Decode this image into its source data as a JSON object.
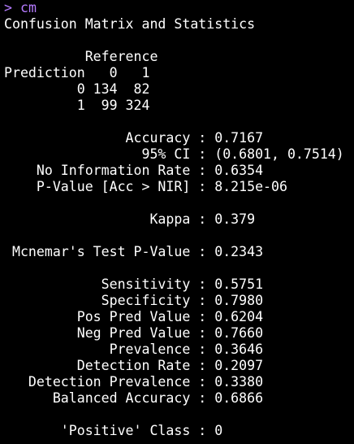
{
  "console": {
    "prompt_symbol": ">",
    "command": "cm",
    "output_lines": [
      "Confusion Matrix and Statistics",
      "",
      "          Reference",
      "Prediction   0   1",
      "         0 134  82",
      "         1  99 324",
      "",
      "               Accuracy : 0.7167",
      "                 95% CI : (0.6801, 0.7514)",
      "    No Information Rate : 0.6354",
      "    P-Value [Acc > NIR] : 8.215e-06",
      "",
      "                  Kappa : 0.379",
      "",
      " Mcnemar's Test P-Value : 0.2343",
      "",
      "            Sensitivity : 0.5751",
      "            Specificity : 0.7980",
      "         Pos Pred Value : 0.6204",
      "         Neg Pred Value : 0.7660",
      "             Prevalence : 0.3646",
      "         Detection Rate : 0.2097",
      "   Detection Prevalence : 0.3380",
      "      Balanced Accuracy : 0.6866",
      "",
      "       'Positive' Class : 0"
    ],
    "colors": {
      "background": "#000000",
      "text": "#ffffff",
      "prompt": "#b57bff"
    }
  }
}
